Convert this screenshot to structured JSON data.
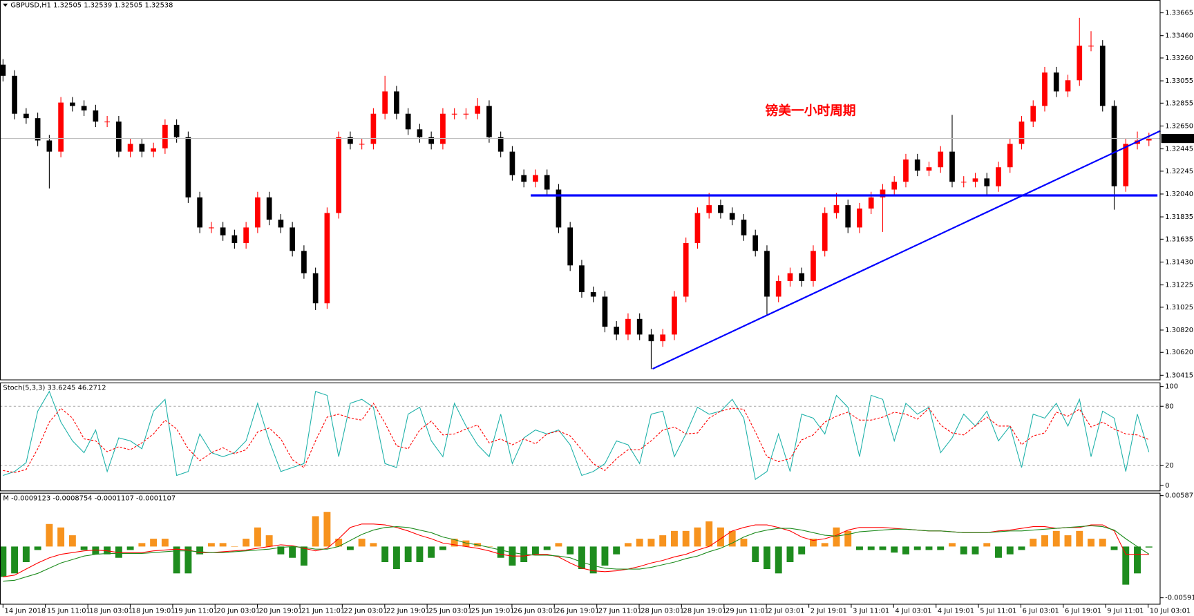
{
  "chart_data": [
    {
      "type": "candlestick",
      "title": "GBPUSD,H1  1.32505 1.32539 1.32505 1.32538",
      "annotation": "镑美一小时周期",
      "up_color": "#ff0000",
      "down_color": "#000000",
      "open": [
        1.332,
        1.331,
        1.3276,
        1.3272,
        1.3252,
        1.3242,
        1.3286,
        1.3283,
        1.3279,
        1.3269,
        1.3269,
        1.3242,
        1.3249,
        1.3242,
        1.3245,
        1.3266,
        1.3255,
        1.3201,
        1.3174,
        1.3174,
        1.3167,
        1.316,
        1.3174,
        1.3201,
        1.3181,
        1.3174,
        1.3153,
        1.3133,
        1.3106,
        1.3187,
        1.3255,
        1.3249,
        1.3249,
        1.3276,
        1.3296,
        1.3276,
        1.3262,
        1.3255,
        1.3249,
        1.3276,
        1.3276,
        1.3276,
        1.3283,
        1.3255,
        1.3242,
        1.3221,
        1.3215,
        1.3221,
        1.3208,
        1.3174,
        1.314,
        1.3116,
        1.3112,
        1.3085,
        1.3078,
        1.3092,
        1.3078,
        1.3072,
        1.3078,
        1.3112,
        1.316,
        1.3187,
        1.3194,
        1.3187,
        1.3181,
        1.3167,
        1.3153,
        1.3112,
        1.3126,
        1.3133,
        1.3126,
        1.3153,
        1.3187,
        1.3194,
        1.3174,
        1.3191,
        1.3201,
        1.3208,
        1.3215,
        1.3235,
        1.3225,
        1.3228,
        1.3242,
        1.3215,
        1.3215,
        1.3218,
        1.3211,
        1.3228,
        1.3249,
        1.3269,
        1.3283,
        1.3313,
        1.3296,
        1.3306,
        1.3337,
        1.3337,
        1.3283,
        1.3211,
        1.3249,
        1.3252
      ],
      "high": [
        1.3325,
        1.3315,
        1.3281,
        1.3277,
        1.3257,
        1.3291,
        1.3291,
        1.3288,
        1.3284,
        1.3274,
        1.3274,
        1.3254,
        1.3254,
        1.325,
        1.3271,
        1.3271,
        1.326,
        1.3206,
        1.3179,
        1.3179,
        1.3172,
        1.3179,
        1.3206,
        1.3206,
        1.3186,
        1.3179,
        1.3158,
        1.3138,
        1.3192,
        1.326,
        1.326,
        1.3254,
        1.3281,
        1.331,
        1.3301,
        1.3281,
        1.3267,
        1.326,
        1.3281,
        1.3281,
        1.3281,
        1.329,
        1.3288,
        1.326,
        1.3247,
        1.3226,
        1.3226,
        1.3226,
        1.3213,
        1.3179,
        1.3145,
        1.3121,
        1.3117,
        1.309,
        1.3097,
        1.3097,
        1.3083,
        1.3083,
        1.3117,
        1.3165,
        1.3192,
        1.3205,
        1.3199,
        1.3192,
        1.3186,
        1.3172,
        1.3158,
        1.3131,
        1.3138,
        1.3138,
        1.3158,
        1.3192,
        1.3205,
        1.3199,
        1.3196,
        1.3206,
        1.3213,
        1.322,
        1.324,
        1.324,
        1.3233,
        1.3247,
        1.3275,
        1.322,
        1.3223,
        1.3223,
        1.3233,
        1.3254,
        1.3274,
        1.3288,
        1.3318,
        1.3318,
        1.3311,
        1.3362,
        1.335,
        1.3342,
        1.3288,
        1.3254,
        1.326,
        1.3259
      ],
      "low": [
        1.3305,
        1.3271,
        1.3267,
        1.3247,
        1.3209,
        1.3237,
        1.3278,
        1.3274,
        1.3264,
        1.3264,
        1.3237,
        1.3237,
        1.3237,
        1.3237,
        1.324,
        1.325,
        1.3196,
        1.3169,
        1.3169,
        1.3162,
        1.3155,
        1.3155,
        1.3169,
        1.3176,
        1.3169,
        1.3148,
        1.3128,
        1.31,
        1.3101,
        1.3182,
        1.3244,
        1.3244,
        1.3244,
        1.3271,
        1.3271,
        1.3257,
        1.325,
        1.3244,
        1.3244,
        1.3271,
        1.3271,
        1.3271,
        1.325,
        1.3237,
        1.3216,
        1.321,
        1.321,
        1.3203,
        1.3169,
        1.3135,
        1.3111,
        1.3107,
        1.308,
        1.3073,
        1.3073,
        1.3073,
        1.3047,
        1.3067,
        1.3073,
        1.3107,
        1.3155,
        1.3182,
        1.3182,
        1.3176,
        1.3162,
        1.3148,
        1.3095,
        1.3107,
        1.3121,
        1.3121,
        1.3121,
        1.3148,
        1.3182,
        1.3169,
        1.3169,
        1.3186,
        1.317,
        1.3203,
        1.321,
        1.322,
        1.322,
        1.3223,
        1.321,
        1.321,
        1.321,
        1.3203,
        1.3206,
        1.3223,
        1.3244,
        1.3264,
        1.3278,
        1.3291,
        1.3291,
        1.3301,
        1.3332,
        1.3278,
        1.319,
        1.3206,
        1.3244,
        1.3247
      ],
      "close": [
        1.331,
        1.3276,
        1.3272,
        1.3252,
        1.3242,
        1.3286,
        1.3283,
        1.3279,
        1.3269,
        1.3269,
        1.3242,
        1.3249,
        1.3242,
        1.3245,
        1.3266,
        1.3255,
        1.3201,
        1.3174,
        1.3174,
        1.3167,
        1.316,
        1.3174,
        1.3201,
        1.3181,
        1.3174,
        1.3153,
        1.3133,
        1.3106,
        1.3187,
        1.3255,
        1.3249,
        1.3249,
        1.3276,
        1.3296,
        1.3276,
        1.3262,
        1.3255,
        1.3249,
        1.3276,
        1.3276,
        1.3276,
        1.3283,
        1.3255,
        1.3242,
        1.3221,
        1.3215,
        1.3221,
        1.3208,
        1.3174,
        1.314,
        1.3116,
        1.3112,
        1.3085,
        1.3078,
        1.3092,
        1.3078,
        1.3072,
        1.3078,
        1.3112,
        1.316,
        1.3187,
        1.3194,
        1.3187,
        1.3181,
        1.3167,
        1.3153,
        1.3112,
        1.3126,
        1.3133,
        1.3126,
        1.3153,
        1.3187,
        1.3194,
        1.3174,
        1.3191,
        1.3201,
        1.3208,
        1.3215,
        1.3235,
        1.3225,
        1.3228,
        1.3242,
        1.3215,
        1.3215,
        1.3218,
        1.3211,
        1.3228,
        1.3249,
        1.3269,
        1.3283,
        1.3313,
        1.3296,
        1.3306,
        1.3337,
        1.3337,
        1.3283,
        1.3211,
        1.3249,
        1.3252,
        1.32538
      ],
      "xlim": [
        -0.26,
        100
      ],
      "xticks": [
        {
          "value": 0,
          "label": "14 Jun 2018"
        },
        {
          "value": 3.66,
          "label": "15 Jun 11:01"
        },
        {
          "value": 7.33,
          "label": "18 Jun 03:01"
        },
        {
          "value": 10.99,
          "label": "18 Jun 19:01"
        },
        {
          "value": 14.66,
          "label": "19 Jun 11:01"
        },
        {
          "value": 18.32,
          "label": "20 Jun 03:01"
        },
        {
          "value": 21.98,
          "label": "20 Jun 19:01"
        },
        {
          "value": 25.65,
          "label": "21 Jun 11:01"
        },
        {
          "value": 29.31,
          "label": "22 Jun 03:01"
        },
        {
          "value": 32.98,
          "label": "22 Jun 19:01"
        },
        {
          "value": 36.64,
          "label": "25 Jun 03:01"
        },
        {
          "value": 40.3,
          "label": "25 Jun 19:01"
        },
        {
          "value": 43.97,
          "label": "26 Jun 03:01"
        },
        {
          "value": 47.63,
          "label": "26 Jun 19:01"
        },
        {
          "value": 51.3,
          "label": "27 Jun 11:01"
        },
        {
          "value": 54.96,
          "label": "28 Jun 03:01"
        },
        {
          "value": 58.62,
          "label": "28 Jun 19:01"
        },
        {
          "value": 62.29,
          "label": "29 Jun 11:01"
        },
        {
          "value": 65.95,
          "label": "2 Jul 03:01"
        },
        {
          "value": 69.62,
          "label": "2 Jul 19:01"
        },
        {
          "value": 73.28,
          "label": "3 Jul 11:01"
        },
        {
          "value": 76.94,
          "label": "4 Jul 03:01"
        },
        {
          "value": 80.61,
          "label": "4 Jul 19:01"
        },
        {
          "value": 84.27,
          "label": "5 Jul 11:01"
        },
        {
          "value": 87.94,
          "label": "6 Jul 03:01"
        },
        {
          "value": 91.6,
          "label": "6 Jul 19:01"
        },
        {
          "value": 95.26,
          "label": "9 Jul 11:01"
        },
        {
          "value": 98.93,
          "label": "10 Jul 03:01"
        }
      ],
      "ylim": [
        1.3037,
        1.3378
      ],
      "yticks": [
        1.33665,
        {
          "value": 1.3346,
          "label": "1.33460"
        },
        {
          "value": 1.3326,
          "label": "1.33260"
        },
        1.33055,
        1.32855,
        {
          "value": 1.3265,
          "label": "1.32650"
        },
        1.32445,
        1.32245,
        {
          "value": 1.3204,
          "label": "1.32040"
        },
        1.31835,
        1.31635,
        {
          "value": 1.3143,
          "label": "1.31430"
        },
        1.31225,
        1.31025,
        {
          "value": 1.3082,
          "label": "1.30820"
        },
        {
          "value": 1.3062,
          "label": "1.30620"
        },
        1.30415
      ]
    },
    {
      "type": "stochastic",
      "title": "Stoch(5,3,3) 33.6245 46.2712",
      "ylim": [
        -6,
        104
      ],
      "yticks": [
        100,
        80,
        20,
        0
      ],
      "levels": [
        80,
        20
      ],
      "series": [
        {
          "color": "#20b2aa",
          "dashed": false,
          "values": [
            10,
            14,
            23,
            75,
            95,
            64,
            45,
            33,
            56,
            14,
            48,
            45,
            37,
            75,
            87,
            10,
            14,
            52,
            33,
            29,
            33,
            45,
            83,
            45,
            14,
            18,
            22,
            95,
            91,
            29,
            83,
            87,
            79,
            22,
            18,
            72,
            79,
            45,
            29,
            83,
            60,
            41,
            29,
            72,
            22,
            48,
            56,
            52,
            56,
            41,
            10,
            14,
            22,
            45,
            41,
            22,
            72,
            75,
            29,
            52,
            79,
            72,
            75,
            87,
            68,
            6,
            14,
            52,
            14,
            72,
            68,
            52,
            91,
            79,
            29,
            91,
            87,
            45,
            83,
            72,
            79,
            33,
            48,
            72,
            60,
            75,
            45,
            60,
            18,
            72,
            68,
            83,
            60,
            87,
            29,
            75,
            68,
            14,
            72,
            33.6245
          ]
        },
        {
          "color": "#ff0000",
          "dashed": true,
          "values": [
            15,
            13,
            16,
            37,
            64,
            78,
            68,
            47,
            45,
            34,
            39,
            36,
            43,
            52,
            66,
            57,
            37,
            25,
            33,
            38,
            32,
            36,
            54,
            58,
            47,
            26,
            18,
            45,
            69,
            72,
            68,
            66,
            83,
            63,
            40,
            37,
            56,
            65,
            51,
            52,
            57,
            61,
            43,
            47,
            41,
            47,
            42,
            52,
            55,
            50,
            36,
            22,
            15,
            27,
            36,
            36,
            45,
            56,
            59,
            52,
            53,
            68,
            75,
            78,
            77,
            54,
            29,
            24,
            27,
            46,
            51,
            64,
            70,
            74,
            66,
            66,
            69,
            74,
            72,
            67,
            78,
            61,
            53,
            51,
            60,
            69,
            60,
            60,
            41,
            50,
            53,
            74,
            70,
            77,
            59,
            64,
            57,
            52,
            51,
            46.2712
          ]
        }
      ]
    },
    {
      "type": "macd",
      "title": "M -0.0009123 -0.0008754 -0.0001107 -0.0001107",
      "ylim": [
        -0.0067,
        0.0062
      ],
      "yticks": [
        0.005877,
        -0.005914
      ],
      "histogram": {
        "pos_color": "#f7931e",
        "neg_color": "#1e8c1e",
        "values": [
          -0.0035,
          -0.0031,
          -0.0018,
          -0.0004,
          0.0026,
          0.0022,
          0.0013,
          -0.0004,
          -0.0009,
          -0.0009,
          -0.0013,
          -0.0004,
          0.0004,
          0.0009,
          0.0009,
          -0.0031,
          -0.0031,
          -0.0009,
          0.0004,
          0.0004,
          0,
          0.0009,
          0.0022,
          0.0013,
          -0.0009,
          -0.0013,
          -0.0022,
          0.0035,
          0.004,
          0.0009,
          -0.0004,
          0.0009,
          0.0004,
          -0.0018,
          -0.0026,
          -0.0018,
          -0.0018,
          -0.0013,
          -0.0004,
          0.0009,
          0.0007,
          0.0004,
          0,
          -0.0013,
          -0.0022,
          -0.0018,
          -0.0009,
          -0.0004,
          0.0004,
          -0.0009,
          -0.0026,
          -0.0031,
          -0.0022,
          -0.0009,
          0.0004,
          0.0009,
          0.0009,
          0.0013,
          0.0018,
          0.0018,
          0.0022,
          0.0029,
          0.0022,
          0.0018,
          0.0009,
          -0.0018,
          -0.0026,
          -0.0031,
          -0.0018,
          -0.0009,
          0.0009,
          0.0004,
          0.0022,
          0.0018,
          -0.0004,
          -0.0004,
          -0.0004,
          -0.0007,
          -0.0009,
          -0.0004,
          -0.0004,
          -0.0004,
          0.0004,
          -0.0009,
          -0.0009,
          0.0004,
          -0.0013,
          -0.0009,
          -0.0004,
          0.0009,
          0.0013,
          0.0018,
          0.0013,
          0.0018,
          0.0009,
          0.0009,
          -0.0004,
          -0.0044,
          -0.0031,
          -0.0001107
        ]
      },
      "series": [
        {
          "color": "#ff0000",
          "values": [
            -0.0035,
            -0.0033,
            -0.0026,
            -0.0019,
            -0.0013,
            -0.0009,
            -0.0007,
            -0.0005,
            -0.0004,
            -0.0005,
            -0.0007,
            -0.0007,
            -0.0007,
            -0.0005,
            -0.0004,
            -0.0003,
            -0.0004,
            -0.0007,
            -0.0007,
            -0.0006,
            -0.0005,
            -0.0004,
            -0.0002,
            0,
            0.0002,
            0.0001,
            -0.0002,
            -0.0005,
            -0.0002,
            0.0009,
            0.0022,
            0.0026,
            0.0026,
            0.0025,
            0.0022,
            0.0018,
            0.0013,
            0.0009,
            0.0004,
            0.0002,
            0,
            -0.0002,
            -0.0005,
            -0.0009,
            -0.0011,
            -0.0011,
            -0.0009,
            -0.0009,
            -0.0012,
            -0.0019,
            -0.0025,
            -0.0028,
            -0.0029,
            -0.0028,
            -0.0026,
            -0.0023,
            -0.0019,
            -0.0016,
            -0.0012,
            -0.0009,
            -0.0004,
            0,
            0.0009,
            0.0018,
            0.0022,
            0.0025,
            0.0025,
            0.0022,
            0.0018,
            0.0011,
            0.0007,
            0.0009,
            0.0013,
            0.0019,
            0.0022,
            0.0022,
            0.0022,
            0.0021,
            0.002,
            0.0019,
            0.0018,
            0.0018,
            0.0017,
            0.0016,
            0.0016,
            0.0016,
            0.0018,
            0.0019,
            0.0021,
            0.0023,
            0.0023,
            0.0021,
            0.0022,
            0.0022,
            0.0025,
            0.0025,
            0.0018,
            -0.0009,
            -0.0009,
            -0.0009123
          ]
        },
        {
          "color": "#1e8c1e",
          "values": [
            -0.004,
            -0.0039,
            -0.0035,
            -0.0031,
            -0.0025,
            -0.0019,
            -0.0015,
            -0.0011,
            -0.0009,
            -0.0008,
            -0.0008,
            -0.0008,
            -0.0008,
            -0.0007,
            -0.0006,
            -0.0005,
            -0.0005,
            -0.0006,
            -0.0007,
            -0.0007,
            -0.0006,
            -0.0005,
            -0.0004,
            -0.0003,
            -0.0001,
            0,
            -0.0001,
            -0.0003,
            -0.0003,
            0,
            0.0007,
            0.0014,
            0.0019,
            0.0022,
            0.0023,
            0.0022,
            0.0019,
            0.0016,
            0.0011,
            0.0008,
            0.0004,
            0.0002,
            -0.0001,
            -0.0004,
            -0.0007,
            -0.0009,
            -0.001,
            -0.001,
            -0.0011,
            -0.0013,
            -0.0018,
            -0.0022,
            -0.0025,
            -0.0026,
            -0.0026,
            -0.0026,
            -0.0024,
            -0.0021,
            -0.0018,
            -0.0014,
            -0.0011,
            -0.0006,
            -0.0002,
            0.0004,
            0.0011,
            0.0016,
            0.0019,
            0.0021,
            0.0021,
            0.0019,
            0.0016,
            0.0013,
            0.0012,
            0.0014,
            0.0017,
            0.0018,
            0.0019,
            0.002,
            0.002,
            0.0019,
            0.0018,
            0.0018,
            0.0017,
            0.0016,
            0.0016,
            0.0016,
            0.0017,
            0.0018,
            0.0018,
            0.0019,
            0.002,
            0.0021,
            0.0022,
            0.0023,
            0.0024,
            0.0023,
            0.0019,
            0.0009,
            0,
            -0.0008754
          ]
        }
      ]
    }
  ]
}
